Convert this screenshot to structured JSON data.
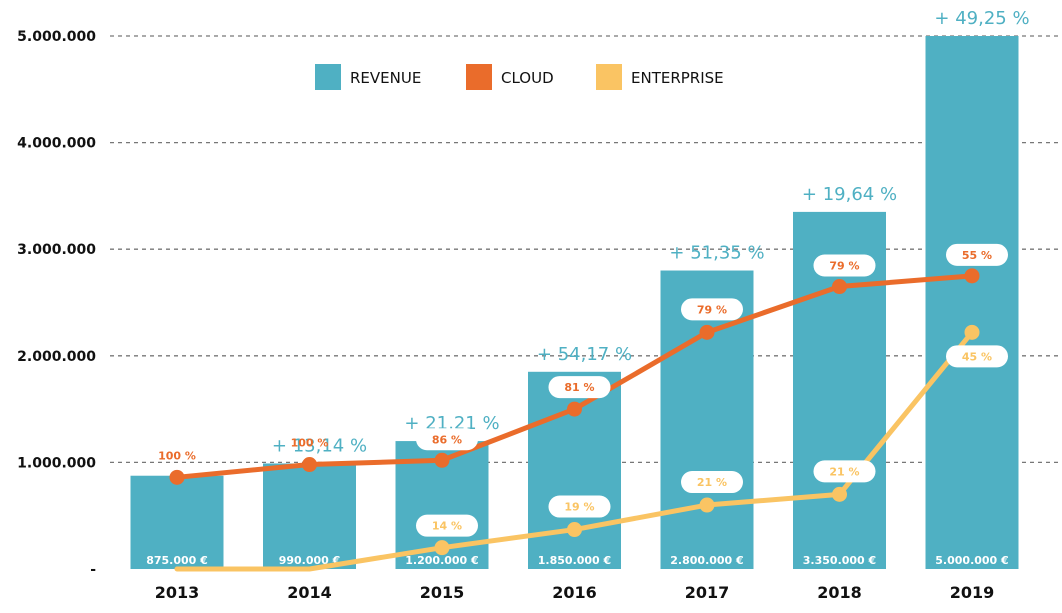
{
  "chart_data": {
    "type": "bar",
    "categories": [
      "2013",
      "2014",
      "2015",
      "2016",
      "2017",
      "2018",
      "2019"
    ],
    "ylim": [
      0,
      5000000
    ],
    "yticks": [
      {
        "value": 0,
        "label": "-"
      },
      {
        "value": 1000000,
        "label": "1.000.000"
      },
      {
        "value": 2000000,
        "label": "2.000.000"
      },
      {
        "value": 3000000,
        "label": "3.000.000"
      },
      {
        "value": 4000000,
        "label": "4.000.000"
      },
      {
        "value": 5000000,
        "label": "5.000.000"
      }
    ],
    "grid": true,
    "legend_position": "top-center",
    "series": [
      {
        "name": "REVENUE",
        "kind": "bar",
        "color": "#4fb0c3",
        "values": [
          875000,
          990000,
          1200000,
          1850000,
          2800000,
          3350000,
          5000000
        ],
        "value_labels": [
          "875.000 €",
          "990.000 €",
          "1.200.000 €",
          "1.850.000 €",
          "2.800.000 €",
          "3.350.000 €",
          "5.000.000 €"
        ],
        "growth_labels": [
          "",
          "+ 13,14 %",
          "+ 21,21 %",
          "+ 54,17 %",
          "+ 51,35 %",
          "+ 19,64 %",
          "+ 49,25 %"
        ]
      },
      {
        "name": "CLOUD",
        "kind": "line",
        "color": "#ea6c2b",
        "values": [
          860000,
          980000,
          1020000,
          1500000,
          2220000,
          2650000,
          2750000
        ],
        "point_labels": [
          "100 %",
          "100 %",
          "86 %",
          "81 %",
          "79 %",
          "79 %",
          "55 %"
        ]
      },
      {
        "name": "ENTERPRISE",
        "kind": "line",
        "color": "#fac463",
        "values": [
          0,
          0,
          200000,
          370000,
          600000,
          700000,
          2220000
        ],
        "point_labels": [
          "",
          "",
          "14 %",
          "19 %",
          "21 %",
          "21 %",
          "45 %"
        ]
      }
    ]
  }
}
